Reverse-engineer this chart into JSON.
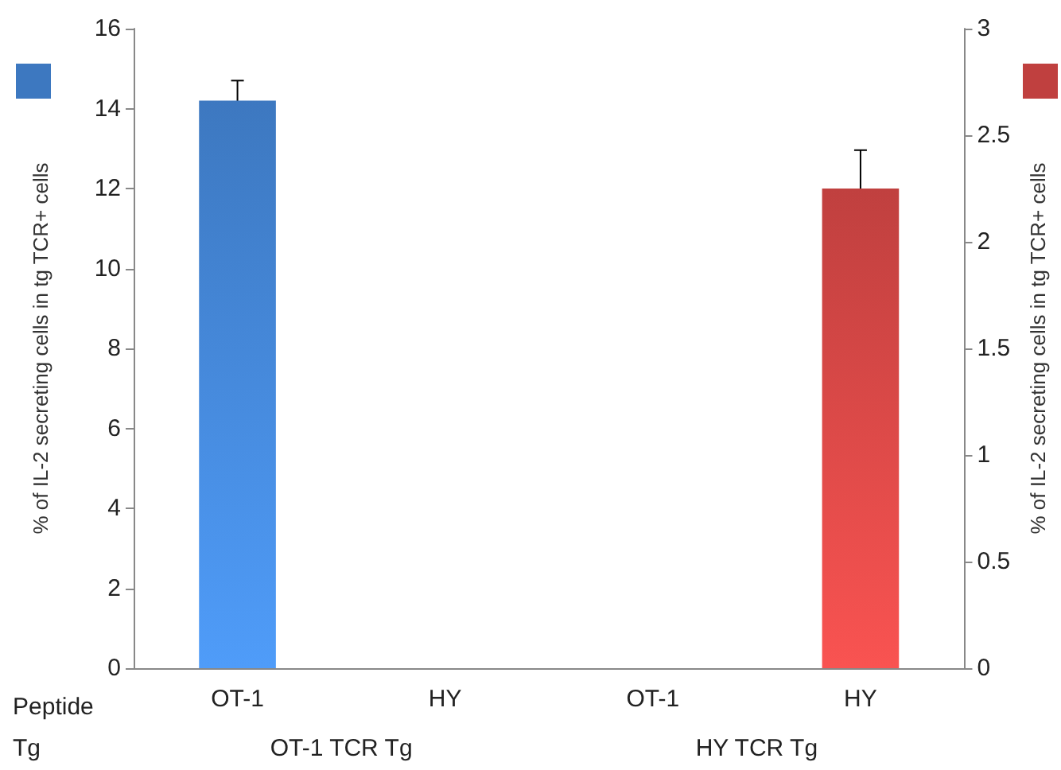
{
  "chart_data": {
    "type": "bar",
    "categories": [
      "OT-1",
      "HY",
      "OT-1",
      "HY"
    ],
    "ylabel": "% of IL-2 secreting cells in tg TCR+ cells",
    "y2label": "% of IL-2 secreting cells in tg TCR+ cells",
    "series": [
      {
        "color": "#3d78c0",
        "values": [
          14.2,
          null,
          null,
          null
        ],
        "errors": [
          0.5,
          null,
          null,
          null
        ]
      },
      {
        "color": "#c0403f",
        "axis": "y2",
        "values": [
          null,
          null,
          null,
          2.25
        ],
        "errors": [
          null,
          null,
          null,
          0.18
        ]
      }
    ],
    "ylim": [
      0,
      16
    ],
    "yticks": [
      0,
      2,
      4,
      6,
      8,
      10,
      12,
      14,
      16
    ],
    "y2lim": [
      0,
      3
    ],
    "y2ticks": [
      0,
      0.5,
      1,
      1.5,
      2,
      2.5,
      3
    ],
    "annotations": [
      "Peptide",
      "Tg",
      "OT-1 TCR Tg",
      "HY TCR Tg"
    ],
    "grid": false
  }
}
